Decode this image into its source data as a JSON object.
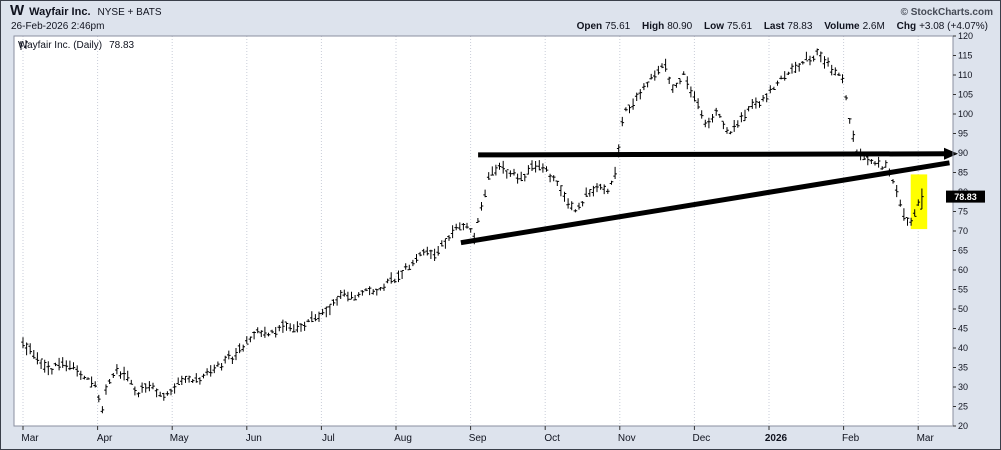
{
  "header": {
    "ticker_symbol": "W",
    "company": "Wayfair Inc.",
    "exchange": "NYSE + BATS",
    "copyright": "© StockCharts.com",
    "datetime": "26-Feb-2026 2:46pm",
    "quote": [
      {
        "label": "Open",
        "value": "75.61"
      },
      {
        "label": "High",
        "value": "80.90"
      },
      {
        "label": "Low",
        "value": "75.61"
      },
      {
        "label": "Last",
        "value": "78.83"
      },
      {
        "label": "Volume",
        "value": "2.6M"
      },
      {
        "label": "Chg",
        "value": "+3.08 (+4.07%)"
      }
    ]
  },
  "chart_label": {
    "title": "Wayfair Inc. (Daily)",
    "last": "78.83"
  },
  "chart_data": {
    "type": "ohlc-bar",
    "title": "Wayfair Inc. (Daily)",
    "y_axis_side": "right",
    "grid": "vertical-month-gridlines",
    "x_labels": [
      "Mar",
      "Apr",
      "May",
      "Jun",
      "Jul",
      "Aug",
      "Sep",
      "Oct",
      "Nov",
      "Dec",
      "2026",
      "Feb",
      "Mar"
    ],
    "x_bold_label": "2026",
    "y_axis": {
      "min": 20,
      "max": 120,
      "step": 5
    },
    "y_ticks": [
      120,
      115,
      110,
      105,
      100,
      95,
      90,
      85,
      80,
      75,
      70,
      65,
      60,
      55,
      50,
      45,
      40,
      35,
      30,
      25,
      20
    ],
    "last_price": 78.83,
    "ohlc_summary": {
      "open": 75.61,
      "high": 80.9,
      "low": 75.61,
      "last": 78.83,
      "volume": "2.6M",
      "change": "+3.08 (+4.07%)"
    },
    "price_path_month_price": [
      [
        0,
        41
      ],
      [
        0.15,
        38.5
      ],
      [
        0.35,
        34.5
      ],
      [
        0.55,
        36.5
      ],
      [
        0.75,
        33.5
      ],
      [
        0.95,
        31
      ],
      [
        1.02,
        27
      ],
      [
        1.06,
        22.5
      ],
      [
        1.12,
        30
      ],
      [
        1.25,
        34.5
      ],
      [
        1.4,
        33
      ],
      [
        1.55,
        28.5
      ],
      [
        1.7,
        31
      ],
      [
        1.85,
        27.5
      ],
      [
        2,
        29
      ],
      [
        2.15,
        32.5
      ],
      [
        2.3,
        31.5
      ],
      [
        2.5,
        34
      ],
      [
        2.7,
        36.5
      ],
      [
        2.85,
        38.5
      ],
      [
        3,
        41.5
      ],
      [
        3.15,
        44.5
      ],
      [
        3.3,
        43.5
      ],
      [
        3.5,
        46
      ],
      [
        3.65,
        44.5
      ],
      [
        3.8,
        46.5
      ],
      [
        4,
        48.5
      ],
      [
        4.15,
        51.5
      ],
      [
        4.3,
        54
      ],
      [
        4.45,
        52.5
      ],
      [
        4.6,
        55
      ],
      [
        4.75,
        54
      ],
      [
        4.9,
        57
      ],
      [
        5.05,
        58.5
      ],
      [
        5.2,
        61.5
      ],
      [
        5.35,
        65
      ],
      [
        5.5,
        63.5
      ],
      [
        5.65,
        67.5
      ],
      [
        5.8,
        70.5
      ],
      [
        5.9,
        72
      ],
      [
        6,
        70
      ],
      [
        6.05,
        68.5
      ],
      [
        6.15,
        76
      ],
      [
        6.25,
        84
      ],
      [
        6.4,
        86.5
      ],
      [
        6.55,
        85
      ],
      [
        6.7,
        83.5
      ],
      [
        6.85,
        86.5
      ],
      [
        7,
        85.5
      ],
      [
        7.15,
        82.5
      ],
      [
        7.3,
        77
      ],
      [
        7.4,
        75.5
      ],
      [
        7.55,
        79
      ],
      [
        7.7,
        81.5
      ],
      [
        7.85,
        80
      ],
      [
        7.95,
        85
      ],
      [
        8.05,
        100
      ],
      [
        8.2,
        103.5
      ],
      [
        8.35,
        107.5
      ],
      [
        8.5,
        111.5
      ],
      [
        8.6,
        113.5
      ],
      [
        8.7,
        106.5
      ],
      [
        8.85,
        110
      ],
      [
        9,
        104
      ],
      [
        9.15,
        97.5
      ],
      [
        9.3,
        100.5
      ],
      [
        9.45,
        95
      ],
      [
        9.6,
        98
      ],
      [
        9.75,
        101.5
      ],
      [
        9.9,
        103.5
      ],
      [
        10.05,
        106
      ],
      [
        10.2,
        109.5
      ],
      [
        10.35,
        112
      ],
      [
        10.5,
        114
      ],
      [
        10.65,
        115.5
      ],
      [
        10.8,
        112.5
      ],
      [
        11,
        108.5
      ],
      [
        11.08,
        99
      ],
      [
        11.18,
        90.5
      ],
      [
        11.3,
        89
      ],
      [
        11.45,
        87.5
      ],
      [
        11.6,
        86
      ],
      [
        11.72,
        80
      ],
      [
        11.82,
        73
      ],
      [
        11.9,
        71.5
      ],
      [
        11.98,
        75.5
      ],
      [
        12.05,
        78.8
      ]
    ],
    "trendlines": [
      {
        "name": "horizontal-resistance",
        "from": [
          6.1,
          89.5
        ],
        "to": [
          12.4,
          89.8
        ],
        "arrow": true
      },
      {
        "name": "rising-support",
        "from": [
          5.87,
          67.0
        ],
        "to": [
          12.42,
          87.5
        ],
        "arrow": false
      }
    ],
    "highlight_band": {
      "color": "#ffff00",
      "t": [
        11.9,
        12.12
      ],
      "price": [
        70.5,
        84.5
      ]
    }
  }
}
